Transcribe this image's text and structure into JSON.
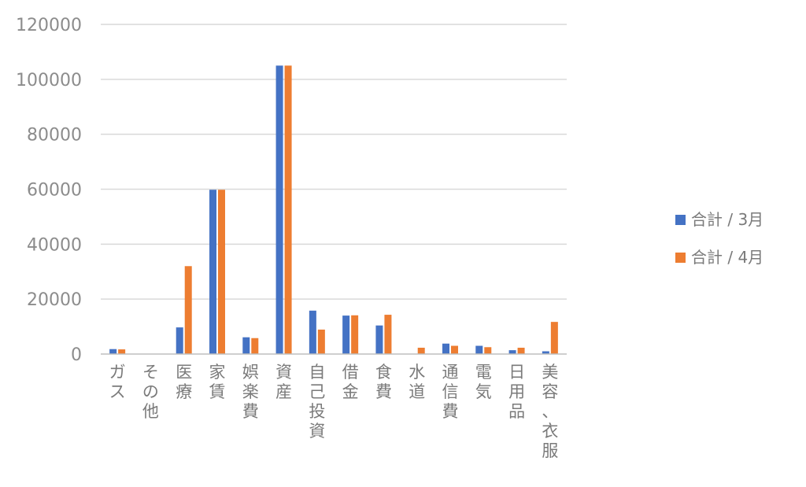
{
  "chart_data": {
    "type": "bar",
    "title": "",
    "xlabel": "",
    "ylabel": "",
    "ylim": [
      0,
      120000
    ],
    "yticks": [
      0,
      20000,
      40000,
      60000,
      80000,
      100000,
      120000
    ],
    "grid": true,
    "legend_position": "right",
    "categories": [
      "ガス",
      "その他",
      "医療",
      "家賃",
      "娯楽費",
      "資産",
      "自己投資",
      "借金",
      "食費",
      "水道",
      "通信費",
      "電気",
      "日用品",
      "美容、衣服"
    ],
    "series": [
      {
        "name": "合計 / 3月",
        "color": "#4472C4",
        "values": [
          1800,
          0,
          9700,
          59800,
          6100,
          105000,
          15800,
          14000,
          10400,
          0,
          3800,
          3000,
          1400,
          1000
        ]
      },
      {
        "name": "合計 / 4月",
        "color": "#ED7D31",
        "values": [
          1700,
          0,
          32000,
          59800,
          5800,
          105000,
          8900,
          14100,
          14300,
          2300,
          3000,
          2500,
          2300,
          11700
        ]
      }
    ]
  }
}
